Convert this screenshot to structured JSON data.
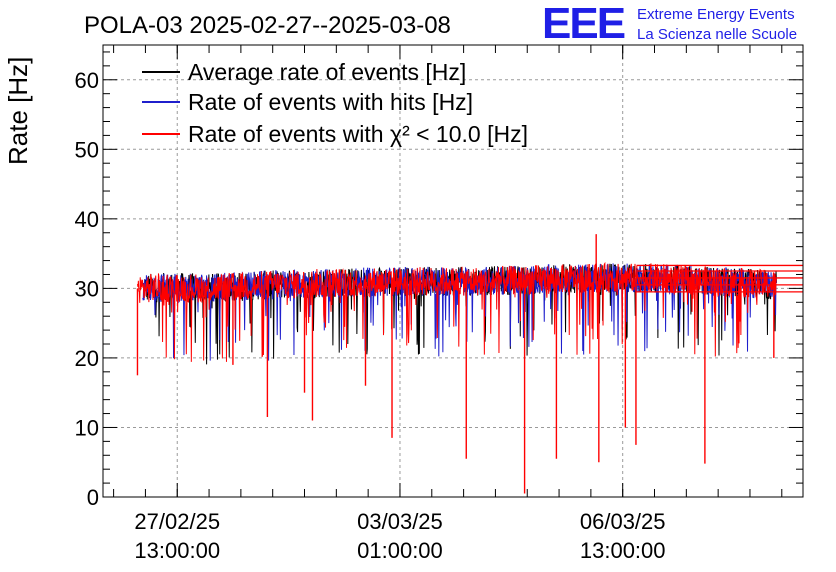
{
  "chart_data": {
    "type": "line",
    "title": "POLA-03 2025-02-27--2025-03-08",
    "ylabel": "Rate [Hz]",
    "xlabel": "",
    "ylim": [
      0,
      65
    ],
    "yticks": [
      0,
      10,
      20,
      30,
      40,
      50,
      60
    ],
    "xlim": [
      "2025-02-26 09:00:00",
      "2025-03-09 09:00:00"
    ],
    "xticks": [
      {
        "date": "27/02/25",
        "time": "13:00:00",
        "at": "2025-02-27 13:00:00"
      },
      {
        "date": "03/03/25",
        "time": "01:00:00",
        "at": "2025-03-03 01:00:00"
      },
      {
        "date": "06/03/25",
        "time": "13:00:00",
        "at": "2025-03-06 13:00:00"
      }
    ],
    "grid": true,
    "legend_position": "top-left",
    "series": [
      {
        "name": "Average rate of events [Hz]",
        "color": "#000000",
        "x": [
          "2025-02-27 00:00:00",
          "2025-02-27 12:00:00",
          "2025-02-28 00:00:00",
          "2025-03-01 00:00:00",
          "2025-03-02 00:00:00",
          "2025-03-03 00:00:00",
          "2025-03-04 00:00:00",
          "2025-03-05 00:00:00",
          "2025-03-06 00:00:00",
          "2025-03-07 00:00:00",
          "2025-03-08 00:00:00",
          "2025-03-08 23:00:00"
        ],
        "values": [
          30.0,
          30.2,
          30.0,
          30.5,
          30.8,
          31.0,
          31.0,
          31.2,
          31.5,
          31.5,
          31.0,
          30.5
        ]
      },
      {
        "name": "Rate of events with hits [Hz]",
        "color": "#1f1fcc",
        "x": [
          "2025-02-27 00:00:00",
          "2025-02-27 12:00:00",
          "2025-02-28 00:00:00",
          "2025-03-01 00:00:00",
          "2025-03-02 00:00:00",
          "2025-03-03 00:00:00",
          "2025-03-04 00:00:00",
          "2025-03-05 00:00:00",
          "2025-03-06 00:00:00",
          "2025-03-07 00:00:00",
          "2025-03-08 00:00:00",
          "2025-03-08 23:00:00"
        ],
        "values": [
          30.0,
          30.2,
          30.0,
          30.5,
          30.8,
          31.0,
          31.0,
          31.2,
          31.5,
          31.5,
          31.0,
          30.5
        ]
      },
      {
        "name": "Rate of events with χ² < 10.0 [Hz]",
        "color": "#ff0000",
        "x": [
          "2025-02-26 22:00:00",
          "2025-02-27 00:00:00",
          "2025-02-27 12:00:00",
          "2025-02-28 00:00:00",
          "2025-03-01 00:00:00",
          "2025-03-02 00:00:00",
          "2025-03-03 00:00:00",
          "2025-03-04 00:00:00",
          "2025-03-05 00:00:00",
          "2025-03-06 00:00:00",
          "2025-03-07 00:00:00",
          "2025-03-08 00:00:00",
          "2025-03-08 23:00:00"
        ],
        "values": [
          30.0,
          30.0,
          30.2,
          30.0,
          30.5,
          30.8,
          31.0,
          31.0,
          31.2,
          31.5,
          31.5,
          31.0,
          30.5
        ],
        "dips": [
          {
            "x": "2025-02-26 22:00:00",
            "y": 17.5
          },
          {
            "x": "2025-02-28 10:00:00",
            "y": 19.0
          },
          {
            "x": "2025-02-28 23:00:00",
            "y": 11.5
          },
          {
            "x": "2025-03-01 13:00:00",
            "y": 15.0
          },
          {
            "x": "2025-03-01 16:00:00",
            "y": 11.0
          },
          {
            "x": "2025-03-02 12:00:00",
            "y": 16.0
          },
          {
            "x": "2025-03-02 22:00:00",
            "y": 8.5
          },
          {
            "x": "2025-03-04 02:00:00",
            "y": 5.5
          },
          {
            "x": "2025-03-05 00:00:00",
            "y": 0.5
          },
          {
            "x": "2025-03-05 12:00:00",
            "y": 5.5
          },
          {
            "x": "2025-03-06 04:00:00",
            "y": 5.0
          },
          {
            "x": "2025-03-06 14:00:00",
            "y": 10.0
          },
          {
            "x": "2025-03-06 18:00:00",
            "y": 7.5
          },
          {
            "x": "2025-03-07 20:00:00",
            "y": 4.8
          },
          {
            "x": "2025-03-08 22:00:00",
            "y": 20.0
          }
        ],
        "peaks": [
          {
            "x": "2025-03-06 03:00:00",
            "y": 37.8
          }
        ]
      }
    ]
  },
  "logo": {
    "letters": "EEE",
    "line1": "Extreme Energy Events",
    "line2": "La Scienza nelle Scuole"
  }
}
